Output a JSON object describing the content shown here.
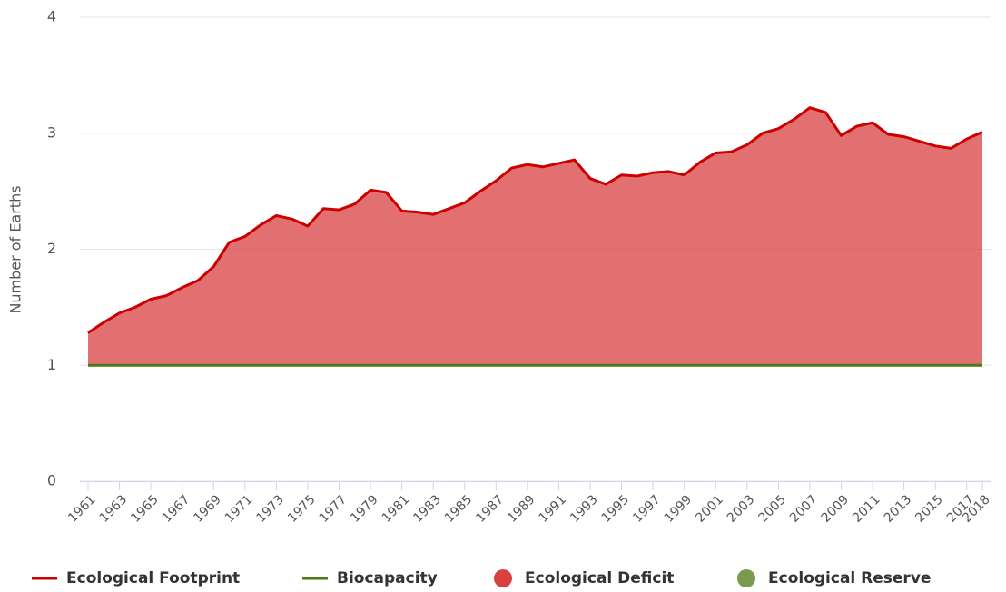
{
  "chart_data": {
    "type": "line",
    "y_label": "Number of Earths",
    "x": [
      1961,
      1962,
      1963,
      1964,
      1965,
      1966,
      1967,
      1968,
      1969,
      1970,
      1971,
      1972,
      1973,
      1974,
      1975,
      1976,
      1977,
      1978,
      1979,
      1980,
      1981,
      1982,
      1983,
      1984,
      1985,
      1986,
      1987,
      1988,
      1989,
      1990,
      1991,
      1992,
      1993,
      1994,
      1995,
      1996,
      1997,
      1998,
      1999,
      2000,
      2001,
      2002,
      2003,
      2004,
      2005,
      2006,
      2007,
      2008,
      2009,
      2010,
      2011,
      2012,
      2013,
      2014,
      2015,
      2016,
      2017,
      2018
    ],
    "xlim": [
      1961,
      2018
    ],
    "xticks": [
      1961,
      1963,
      1965,
      1967,
      1969,
      1971,
      1973,
      1975,
      1977,
      1979,
      1981,
      1983,
      1985,
      1987,
      1989,
      1991,
      1993,
      1995,
      1997,
      1999,
      2001,
      2003,
      2005,
      2007,
      2009,
      2011,
      2013,
      2015,
      2017,
      2018
    ],
    "ylim": [
      0,
      4
    ],
    "yticks": [
      0,
      1,
      2,
      3,
      4
    ],
    "grid": true,
    "series": [
      {
        "name": "Ecological Footprint",
        "color": "#cc0000",
        "values": [
          1.28,
          1.37,
          1.45,
          1.5,
          1.57,
          1.6,
          1.67,
          1.73,
          1.85,
          2.06,
          2.11,
          2.21,
          2.29,
          2.26,
          2.2,
          2.35,
          2.34,
          2.39,
          2.51,
          2.49,
          2.33,
          2.32,
          2.3,
          2.35,
          2.4,
          2.5,
          2.59,
          2.7,
          2.73,
          2.71,
          2.74,
          2.77,
          2.61,
          2.56,
          2.64,
          2.63,
          2.66,
          2.67,
          2.64,
          2.75,
          2.83,
          2.84,
          2.9,
          3.0,
          3.04,
          3.12,
          3.22,
          3.18,
          2.98,
          3.06,
          3.09,
          2.99,
          2.97,
          2.93,
          2.89,
          2.87,
          2.95,
          3.01
        ]
      },
      {
        "name": "Biocapacity",
        "color": "#4a7a1a",
        "values": [
          1,
          1,
          1,
          1,
          1,
          1,
          1,
          1,
          1,
          1,
          1,
          1,
          1,
          1,
          1,
          1,
          1,
          1,
          1,
          1,
          1,
          1,
          1,
          1,
          1,
          1,
          1,
          1,
          1,
          1,
          1,
          1,
          1,
          1,
          1,
          1,
          1,
          1,
          1,
          1,
          1,
          1,
          1,
          1,
          1,
          1,
          1,
          1,
          1,
          1,
          1,
          1,
          1,
          1,
          1,
          1,
          1,
          1
        ]
      }
    ],
    "areas": [
      {
        "name": "Ecological Deficit",
        "color": "#d94040"
      },
      {
        "name": "Ecological Reserve",
        "color": "#7a9a50"
      }
    ],
    "legend": "bottom"
  }
}
